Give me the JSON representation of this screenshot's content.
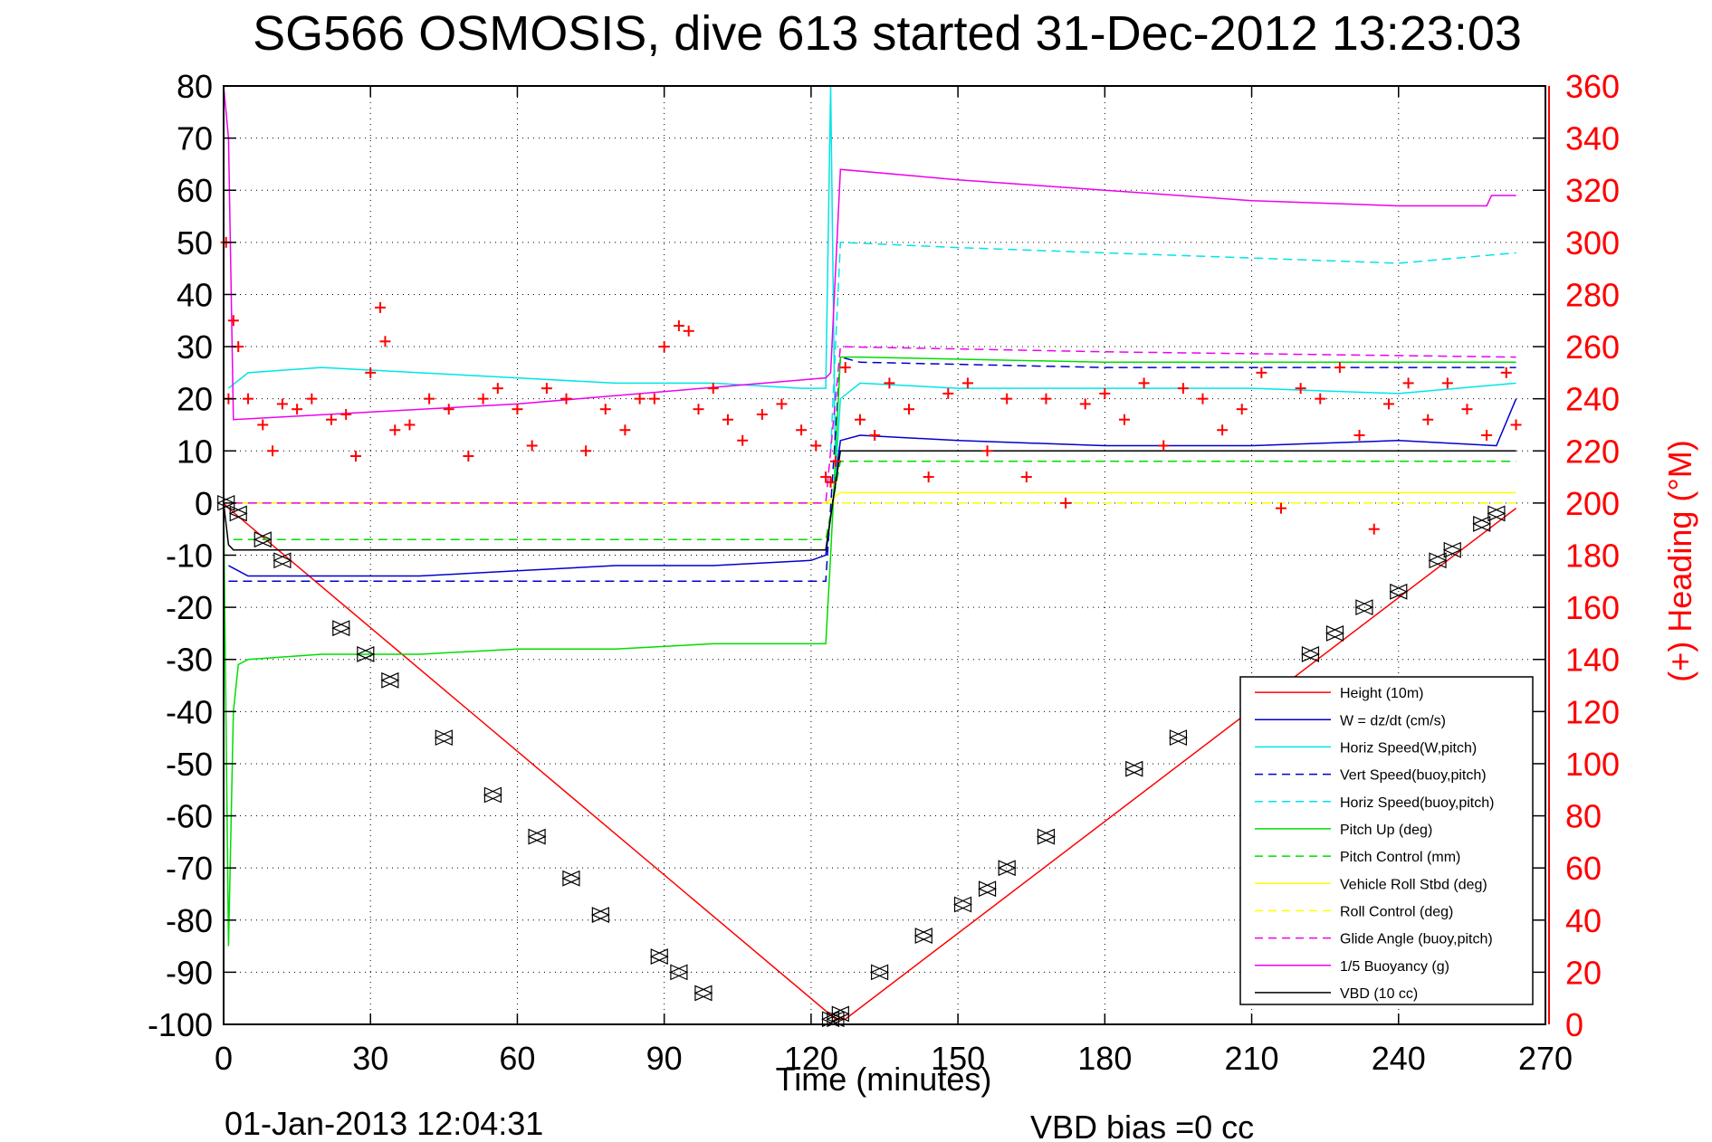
{
  "chart_data": {
    "type": "line",
    "title": "SG566 OSMOSIS, dive 613 started 31-Dec-2012 13:23:03",
    "xlabel": "Time (minutes)",
    "ylabel_right": "(+) Heading (°M)",
    "footer_left": "01-Jan-2013 12:04:31",
    "footer_right": "VBD bias =0 cc",
    "xlim": [
      0,
      270
    ],
    "ylim": [
      -100,
      80
    ],
    "ylim_right": [
      0,
      360
    ],
    "xticks": [
      "0",
      "30",
      "60",
      "90",
      "120",
      "150",
      "180",
      "210",
      "240",
      "270"
    ],
    "xtick_values": [
      0,
      30,
      60,
      90,
      120,
      150,
      180,
      210,
      240,
      270
    ],
    "yticks": [
      "80",
      "70",
      "60",
      "50",
      "40",
      "30",
      "20",
      "10",
      "0",
      "-10",
      "-20",
      "-30",
      "-40",
      "-50",
      "-60",
      "-70",
      "-80",
      "-90",
      "-100"
    ],
    "ytick_values": [
      80,
      70,
      60,
      50,
      40,
      30,
      20,
      10,
      0,
      -10,
      -20,
      -30,
      -40,
      -50,
      -60,
      -70,
      -80,
      -90,
      -100
    ],
    "yticks_right": [
      "360",
      "340",
      "320",
      "300",
      "280",
      "260",
      "240",
      "220",
      "200",
      "180",
      "160",
      "140",
      "120",
      "100",
      "80",
      "60",
      "40",
      "20",
      "0"
    ],
    "ytick_right_values": [
      360,
      340,
      320,
      300,
      280,
      260,
      240,
      220,
      200,
      180,
      160,
      140,
      120,
      100,
      80,
      60,
      40,
      20,
      0
    ],
    "grid": true,
    "legend_position": "bottom-right",
    "series": [
      {
        "name": "Height (10m)",
        "color": "#ff0000",
        "style": "solid",
        "x": [
          0,
          1,
          125,
          127,
          264
        ],
        "y": [
          0,
          -1,
          -99,
          -99,
          -1
        ]
      },
      {
        "name": "W = dz/dt (cm/s)",
        "color": "#0000cc",
        "style": "solid",
        "x": [
          1,
          5,
          20,
          40,
          60,
          80,
          100,
          120,
          123,
          126,
          130,
          150,
          180,
          210,
          240,
          260,
          264
        ],
        "y": [
          -12,
          -14,
          -14,
          -14,
          -13,
          -12,
          -12,
          -11,
          -10,
          12,
          13,
          12,
          11,
          11,
          12,
          11,
          20
        ]
      },
      {
        "name": "Horiz Speed(W,pitch)",
        "color": "#00e5e5",
        "style": "solid",
        "x": [
          1,
          5,
          20,
          40,
          60,
          80,
          100,
          118,
          123,
          124,
          125,
          126,
          130,
          150,
          180,
          210,
          240,
          264
        ],
        "y": [
          22,
          25,
          26,
          25,
          24,
          23,
          23,
          22,
          22,
          80,
          5,
          20,
          23,
          22,
          22,
          22,
          21,
          23
        ]
      },
      {
        "name": "Vert Speed(buoy,pitch)",
        "color": "#0000cc",
        "style": "dashed",
        "x": [
          1,
          123,
          126,
          130,
          180,
          264
        ],
        "y": [
          -15,
          -15,
          28,
          27,
          26,
          26
        ]
      },
      {
        "name": "Horiz Speed(buoy,pitch)",
        "color": "#00e5e5",
        "style": "dashed",
        "x": [
          124,
          126,
          150,
          180,
          210,
          240,
          264
        ],
        "y": [
          10,
          50,
          49,
          48,
          47,
          46,
          48
        ]
      },
      {
        "name": "Pitch Up (deg)",
        "color": "#00dd00",
        "style": "solid",
        "x": [
          0,
          1,
          2,
          3,
          5,
          20,
          40,
          60,
          80,
          100,
          123,
          124,
          126,
          130,
          180,
          264
        ],
        "y": [
          0,
          -85,
          -40,
          -31,
          -30,
          -29,
          -29,
          -28,
          -28,
          -27,
          -27,
          -10,
          28,
          28,
          27,
          27
        ]
      },
      {
        "name": "Pitch Control (mm)",
        "color": "#00dd00",
        "style": "dashed",
        "x": [
          2,
          123,
          126,
          264
        ],
        "y": [
          -7,
          -7,
          8,
          8
        ]
      },
      {
        "name": "Vehicle Roll Stbd (deg)",
        "color": "#ffff00",
        "style": "solid",
        "x": [
          2,
          123,
          126,
          264
        ],
        "y": [
          0,
          0,
          2,
          2
        ]
      },
      {
        "name": "Roll Control (deg)",
        "color": "#ffff00",
        "style": "dashed",
        "x": [
          2,
          123,
          126,
          264
        ],
        "y": [
          0,
          0,
          0,
          0
        ]
      },
      {
        "name": "Glide Angle (buoy,pitch)",
        "color": "#ee00ee",
        "style": "dashed",
        "x": [
          2,
          123,
          126,
          180,
          264
        ],
        "y": [
          0,
          0,
          30,
          29,
          28
        ]
      },
      {
        "name": "1/5 Buoyancy (g)",
        "color": "#ee00ee",
        "style": "solid",
        "x": [
          0,
          1,
          2,
          60,
          123,
          124,
          126,
          150,
          180,
          210,
          240,
          258,
          259,
          264
        ],
        "y": [
          80,
          70,
          16,
          19,
          24,
          25,
          64,
          62,
          60,
          58,
          57,
          57,
          59,
          59
        ]
      },
      {
        "name": "VBD (10 cc)",
        "color": "#000000",
        "style": "solid",
        "x": [
          0,
          1,
          2,
          123,
          126,
          264
        ],
        "y": [
          0,
          -8,
          -9,
          -9,
          10,
          10
        ]
      }
    ],
    "heading_series": {
      "name": "Heading (°M)",
      "color": "#ff0000",
      "marker": "+",
      "axis": "right",
      "x": [
        0.5,
        1,
        2,
        3,
        5,
        8,
        10,
        12,
        15,
        18,
        22,
        25,
        27,
        30,
        32,
        33,
        35,
        38,
        42,
        46,
        50,
        53,
        56,
        60,
        63,
        66,
        70,
        74,
        78,
        82,
        85,
        88,
        90,
        93,
        95,
        97,
        100,
        103,
        106,
        110,
        114,
        118,
        121,
        123,
        124,
        125,
        127,
        130,
        133,
        136,
        140,
        144,
        148,
        152,
        156,
        160,
        164,
        168,
        172,
        176,
        180,
        184,
        188,
        192,
        196,
        200,
        204,
        208,
        212,
        216,
        220,
        224,
        228,
        232,
        235,
        238,
        242,
        246,
        250,
        254,
        258,
        262,
        264
      ],
      "y": [
        300,
        240,
        270,
        260,
        240,
        230,
        220,
        238,
        236,
        240,
        232,
        234,
        218,
        250,
        275,
        262,
        228,
        230,
        240,
        236,
        218,
        240,
        244,
        236,
        222,
        244,
        240,
        220,
        236,
        228,
        240,
        240,
        260,
        268,
        266,
        236,
        244,
        232,
        224,
        234,
        238,
        228,
        222,
        210,
        208,
        216,
        252,
        232,
        226,
        246,
        236,
        210,
        242,
        246,
        220,
        240,
        210,
        240,
        200,
        238,
        242,
        232,
        246,
        222,
        244,
        240,
        228,
        236,
        250,
        198,
        244,
        240,
        252,
        226,
        190,
        238,
        246,
        232,
        246,
        236,
        226,
        250,
        230
      ]
    },
    "depth_markers": {
      "name": "Depth samples",
      "color": "#000000",
      "marker": "triangle-pair",
      "x": [
        0.5,
        3,
        8,
        12,
        24,
        29,
        34,
        45,
        55,
        64,
        71,
        77,
        89,
        93,
        98,
        124,
        125,
        126,
        134,
        143,
        151,
        156,
        160,
        168,
        186,
        195,
        212,
        222,
        227,
        233,
        240,
        248,
        251,
        257,
        260
      ],
      "y": [
        0,
        -2,
        -7,
        -11,
        -24,
        -29,
        -34,
        -45,
        -56,
        -64,
        -72,
        -79,
        -87,
        -90,
        -94,
        -99,
        -99,
        -98,
        -90,
        -83,
        -77,
        -74,
        -70,
        -64,
        -51,
        -45,
        -35,
        -29,
        -25,
        -20,
        -17,
        -11,
        -9,
        -4,
        -2
      ]
    }
  }
}
